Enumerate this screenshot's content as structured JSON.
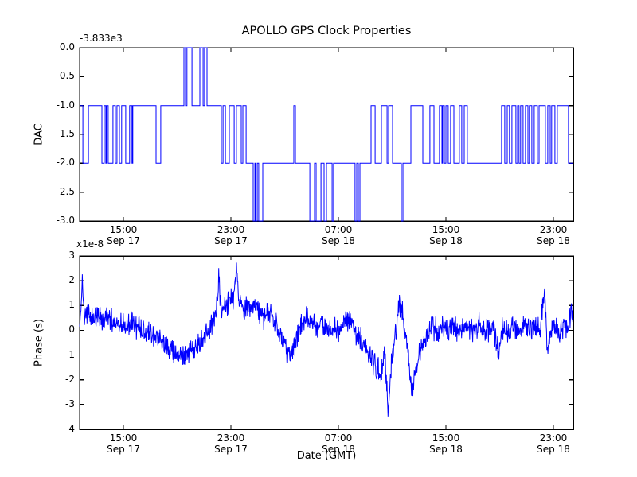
{
  "figure": {
    "background_color": "#ffffff",
    "frame_color": "#000000",
    "line_color": "#0000ff"
  },
  "chart_data": [
    {
      "type": "line",
      "subtype": "step",
      "title": "APOLLO GPS Clock Properties",
      "ylabel": "DAC",
      "offset_text": "-3.833e3",
      "offset_value": -3833,
      "ylim": [
        -3.0,
        0.0
      ],
      "ytick_values": [
        0.0,
        -0.5,
        -1.0,
        -1.5,
        -2.0,
        -2.5,
        -3.0
      ],
      "ytick_labels": [
        "0.0",
        "-0.5",
        "-1.0",
        "-1.5",
        "-2.0",
        "-2.5",
        "-3.0"
      ],
      "x_unit": "hours since Sep 17 00:00 GMT",
      "xlim": [
        11.74,
        48.48
      ],
      "xtick_values": [
        15,
        23,
        31,
        39,
        47
      ],
      "xtick_labels": [
        [
          "15:00",
          "Sep 17"
        ],
        [
          "23:00",
          "Sep 17"
        ],
        [
          "07:00",
          "Sep 18"
        ],
        [
          "15:00",
          "Sep 18"
        ],
        [
          "23:00",
          "Sep 18"
        ]
      ],
      "grid": false,
      "legend": null,
      "line_color": "#0000ff",
      "series": [
        {
          "name": "DAC",
          "step_points": [
            [
              11.74,
              -1
            ],
            [
              11.98,
              -2
            ],
            [
              12.4,
              -1
            ],
            [
              13.4,
              -2
            ],
            [
              13.57,
              -1
            ],
            [
              13.69,
              -2
            ],
            [
              13.75,
              -1
            ],
            [
              13.87,
              -2
            ],
            [
              14.22,
              -1
            ],
            [
              14.4,
              -2
            ],
            [
              14.52,
              -1
            ],
            [
              14.7,
              -2
            ],
            [
              14.87,
              -1
            ],
            [
              15.17,
              -2
            ],
            [
              15.46,
              -1
            ],
            [
              15.64,
              -2
            ],
            [
              15.7,
              -1
            ],
            [
              17.43,
              -2
            ],
            [
              17.78,
              -1
            ],
            [
              19.5,
              0
            ],
            [
              19.62,
              -1
            ],
            [
              19.73,
              0
            ],
            [
              20.1,
              -1
            ],
            [
              20.69,
              0
            ],
            [
              20.93,
              -1
            ],
            [
              21.04,
              0
            ],
            [
              21.22,
              -1
            ],
            [
              22.29,
              -2
            ],
            [
              22.41,
              -1
            ],
            [
              22.59,
              -2
            ],
            [
              22.88,
              -1
            ],
            [
              23.24,
              -2
            ],
            [
              23.41,
              -1
            ],
            [
              23.77,
              -2
            ],
            [
              23.89,
              -1
            ],
            [
              24.13,
              -2
            ],
            [
              24.66,
              -3
            ],
            [
              24.78,
              -2
            ],
            [
              24.84,
              -3
            ],
            [
              24.96,
              -2
            ],
            [
              25.07,
              -3
            ],
            [
              25.37,
              -2
            ],
            [
              27.68,
              -1
            ],
            [
              27.8,
              -2
            ],
            [
              28.87,
              -3
            ],
            [
              29.22,
              -2
            ],
            [
              29.34,
              -3
            ],
            [
              29.7,
              -2
            ],
            [
              29.93,
              -3
            ],
            [
              30.11,
              -2
            ],
            [
              30.53,
              -3
            ],
            [
              30.64,
              -2
            ],
            [
              32.24,
              -3
            ],
            [
              32.36,
              -2
            ],
            [
              32.48,
              -3
            ],
            [
              32.6,
              -2
            ],
            [
              33.43,
              -1
            ],
            [
              33.73,
              -2
            ],
            [
              34.2,
              -1
            ],
            [
              34.62,
              -2
            ],
            [
              34.73,
              -1
            ],
            [
              35.03,
              -2
            ],
            [
              35.68,
              -3
            ],
            [
              35.8,
              -2
            ],
            [
              36.39,
              -1
            ],
            [
              37.28,
              -2
            ],
            [
              37.81,
              -1
            ],
            [
              38.11,
              -2
            ],
            [
              38.52,
              -1
            ],
            [
              38.7,
              -2
            ],
            [
              38.76,
              -1
            ],
            [
              38.88,
              -2
            ],
            [
              39.0,
              -1
            ],
            [
              39.17,
              -2
            ],
            [
              39.35,
              -1
            ],
            [
              39.59,
              -2
            ],
            [
              40.0,
              -1
            ],
            [
              40.18,
              -2
            ],
            [
              40.36,
              -1
            ],
            [
              40.59,
              -2
            ],
            [
              43.14,
              -1
            ],
            [
              43.38,
              -2
            ],
            [
              43.56,
              -1
            ],
            [
              43.73,
              -2
            ],
            [
              43.91,
              -1
            ],
            [
              44.21,
              -2
            ],
            [
              44.33,
              -1
            ],
            [
              44.44,
              -2
            ],
            [
              44.56,
              -1
            ],
            [
              44.74,
              -2
            ],
            [
              44.92,
              -1
            ],
            [
              45.1,
              -2
            ],
            [
              45.21,
              -1
            ],
            [
              45.39,
              -2
            ],
            [
              45.57,
              -1
            ],
            [
              45.81,
              -2
            ],
            [
              45.93,
              -1
            ],
            [
              46.4,
              -2
            ],
            [
              46.58,
              -1
            ],
            [
              46.76,
              -2
            ],
            [
              46.87,
              -1
            ],
            [
              47.11,
              -2
            ],
            [
              47.29,
              -1
            ],
            [
              48.12,
              -2
            ]
          ]
        }
      ]
    },
    {
      "type": "line",
      "subtype": "noisy",
      "ylabel": "Phase (s)",
      "scale_text": "x1e-8",
      "scale_multiplier": 1e-08,
      "xlabel": "Date (GMT)",
      "ylim": [
        -4,
        3
      ],
      "ytick_values": [
        3,
        2,
        1,
        0,
        -1,
        -2,
        -3,
        -4
      ],
      "ytick_labels": [
        "3",
        "2",
        "1",
        "0",
        "-1",
        "-2",
        "-3",
        "-4"
      ],
      "x_unit": "hours since Sep 17 00:00 GMT",
      "xlim": [
        11.74,
        48.48
      ],
      "xtick_values": [
        15,
        23,
        31,
        39,
        47
      ],
      "xtick_labels": [
        [
          "15:00",
          "Sep 17"
        ],
        [
          "23:00",
          "Sep 17"
        ],
        [
          "07:00",
          "Sep 18"
        ],
        [
          "15:00",
          "Sep 18"
        ],
        [
          "23:00",
          "Sep 18"
        ]
      ],
      "grid": false,
      "legend": null,
      "line_color": "#0000ff",
      "series": [
        {
          "name": "Phase",
          "units": "1e-8 s",
          "noise_amplitude": 0.58,
          "trend_points": [
            [
              11.74,
              0.1
            ],
            [
              11.92,
              1.85
            ],
            [
              12.1,
              0.55
            ],
            [
              12.4,
              0.8
            ],
            [
              12.7,
              0.5
            ],
            [
              13.1,
              0.65
            ],
            [
              13.5,
              0.4
            ],
            [
              13.9,
              0.55
            ],
            [
              14.3,
              0.3
            ],
            [
              14.7,
              0.45
            ],
            [
              15.1,
              0.2
            ],
            [
              15.5,
              0.3
            ],
            [
              16.0,
              0.15
            ],
            [
              16.5,
              0.05
            ],
            [
              17.0,
              -0.15
            ],
            [
              17.5,
              -0.4
            ],
            [
              18.0,
              -0.6
            ],
            [
              18.4,
              -0.75
            ],
            [
              18.8,
              -0.9
            ],
            [
              19.2,
              -0.95
            ],
            [
              19.6,
              -0.9
            ],
            [
              20.0,
              -0.8
            ],
            [
              20.4,
              -0.7
            ],
            [
              20.8,
              -0.45
            ],
            [
              21.2,
              -0.15
            ],
            [
              21.6,
              0.35
            ],
            [
              21.9,
              0.55
            ],
            [
              22.1,
              2.1
            ],
            [
              22.3,
              0.6
            ],
            [
              22.6,
              0.9
            ],
            [
              22.9,
              1.15
            ],
            [
              23.2,
              1.35
            ],
            [
              23.4,
              2.35
            ],
            [
              23.6,
              1.25
            ],
            [
              23.9,
              1.05
            ],
            [
              24.2,
              0.85
            ],
            [
              24.5,
              0.7
            ],
            [
              24.8,
              0.9
            ],
            [
              25.1,
              0.7
            ],
            [
              25.4,
              0.5
            ],
            [
              25.7,
              0.65
            ],
            [
              26.0,
              0.6
            ],
            [
              26.3,
              0.35
            ],
            [
              26.6,
              0.0
            ],
            [
              26.9,
              -0.4
            ],
            [
              27.2,
              -0.8
            ],
            [
              27.4,
              -0.95
            ],
            [
              27.7,
              -0.6
            ],
            [
              28.0,
              -0.2
            ],
            [
              28.3,
              0.25
            ],
            [
              28.6,
              0.45
            ],
            [
              29.0,
              0.3
            ],
            [
              29.4,
              0.15
            ],
            [
              29.8,
              0.25
            ],
            [
              30.2,
              0.0
            ],
            [
              30.6,
              0.1
            ],
            [
              31.0,
              -0.05
            ],
            [
              31.3,
              0.3
            ],
            [
              31.6,
              0.5
            ],
            [
              31.9,
              0.3
            ],
            [
              32.2,
              0.05
            ],
            [
              32.5,
              -0.2
            ],
            [
              32.9,
              -0.6
            ],
            [
              33.3,
              -1.0
            ],
            [
              33.7,
              -1.4
            ],
            [
              34.0,
              -1.6
            ],
            [
              34.2,
              -1.7
            ],
            [
              34.45,
              -0.9
            ],
            [
              34.7,
              -3.35
            ],
            [
              34.95,
              -1.3
            ],
            [
              35.2,
              -0.3
            ],
            [
              35.55,
              1.05
            ],
            [
              35.8,
              0.55
            ],
            [
              36.1,
              -0.5
            ],
            [
              36.5,
              -2.55
            ],
            [
              36.75,
              -1.6
            ],
            [
              37.0,
              -1.0
            ],
            [
              37.3,
              -0.55
            ],
            [
              37.6,
              -0.25
            ],
            [
              38.0,
              0.1
            ],
            [
              38.4,
              -0.1
            ],
            [
              38.8,
              0.2
            ],
            [
              39.2,
              0.0
            ],
            [
              39.6,
              0.15
            ],
            [
              40.0,
              -0.05
            ],
            [
              40.5,
              0.2
            ],
            [
              41.0,
              0.0
            ],
            [
              41.5,
              0.25
            ],
            [
              42.0,
              -0.1
            ],
            [
              42.5,
              0.15
            ],
            [
              42.9,
              -0.9
            ],
            [
              43.2,
              0.1
            ],
            [
              43.6,
              -0.1
            ],
            [
              44.0,
              0.15
            ],
            [
              44.4,
              -0.05
            ],
            [
              44.8,
              0.15
            ],
            [
              45.2,
              0.0
            ],
            [
              45.6,
              0.1
            ],
            [
              46.0,
              0.05
            ],
            [
              46.35,
              1.8
            ],
            [
              46.55,
              -0.9
            ],
            [
              46.8,
              0.1
            ],
            [
              47.1,
              0.15
            ],
            [
              47.4,
              -0.1
            ],
            [
              47.8,
              0.25
            ],
            [
              48.1,
              0.0
            ],
            [
              48.3,
              0.9
            ],
            [
              48.48,
              0.2
            ]
          ]
        }
      ]
    }
  ]
}
